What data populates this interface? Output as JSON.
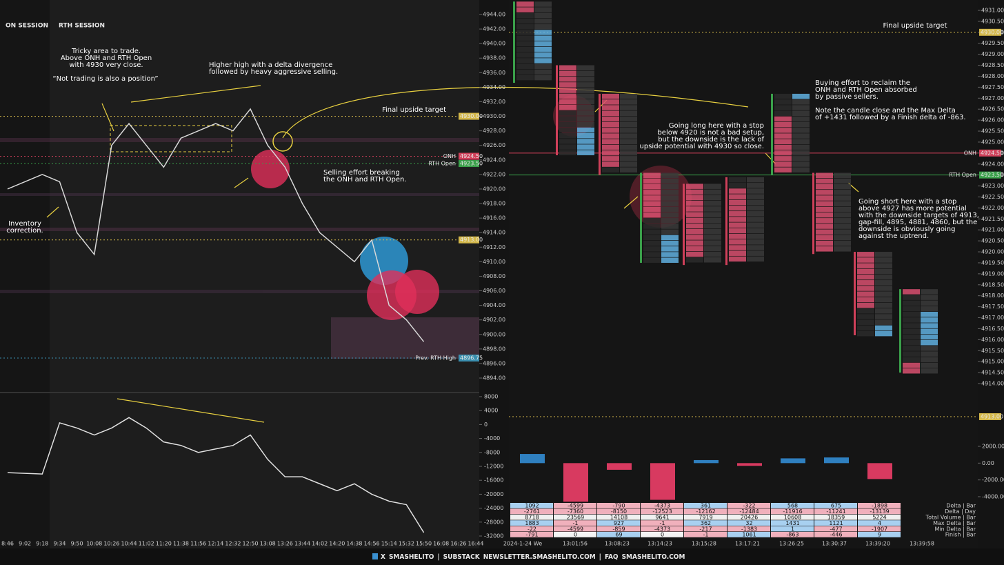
{
  "sessions": [
    "ON SESSION",
    "RTH SESSION"
  ],
  "left_chart": {
    "yticks": [
      {
        "value": 4944,
        "label": "4944.00"
      },
      {
        "value": 4942,
        "label": "4942.00"
      },
      {
        "value": 4940,
        "label": "4940.00"
      },
      {
        "value": 4938,
        "label": "4938.00"
      },
      {
        "value": 4936,
        "label": "4936.00"
      },
      {
        "value": 4934,
        "label": "4934.00"
      },
      {
        "value": 4932,
        "label": "4932.00"
      },
      {
        "value": 4930,
        "label": "4930.00"
      },
      {
        "value": 4928,
        "label": "4928.00"
      },
      {
        "value": 4926,
        "label": "4926.00"
      },
      {
        "value": 4924,
        "label": "4924.00"
      },
      {
        "value": 4922,
        "label": "4922.00"
      },
      {
        "value": 4920,
        "label": "4920.00"
      },
      {
        "value": 4918,
        "label": "4918.00"
      },
      {
        "value": 4916,
        "label": "4916.00"
      },
      {
        "value": 4914,
        "label": "4914.00"
      },
      {
        "value": 4912,
        "label": "4912.00"
      },
      {
        "value": 4910,
        "label": "4910.00"
      },
      {
        "value": 4908,
        "label": "4908.00"
      },
      {
        "value": 4906,
        "label": "4906.00"
      },
      {
        "value": 4904,
        "label": "4904.00"
      },
      {
        "value": 4902,
        "label": "4902.00"
      },
      {
        "value": 4900,
        "label": "4900.00"
      },
      {
        "value": 4898,
        "label": "4898.00"
      },
      {
        "value": 4896,
        "label": "4896.00"
      },
      {
        "value": 4894,
        "label": "4894.00"
      }
    ],
    "levels": [
      {
        "name": "",
        "value": 4930,
        "label": "4930.00",
        "color": "#d4b84a"
      },
      {
        "name": "ONH",
        "value": 4924.5,
        "label": "4924.50",
        "color": "#d0405a"
      },
      {
        "name": "RTH Open",
        "value": 4923.5,
        "label": "4923.50",
        "color": "#3aa04a"
      },
      {
        "name": "",
        "value": 4913,
        "label": "4913.00",
        "color": "#d4b84a"
      },
      {
        "name": "Prev. RTH High",
        "value": 4896.75,
        "label": "4896.75",
        "color": "#3a8fb0"
      }
    ],
    "times": [
      "8:46",
      "9:02",
      "9:18",
      "9:34",
      "9:50",
      "10:08",
      "10:26",
      "10:44",
      "11:02",
      "11:20",
      "11:38",
      "11:56",
      "12:14",
      "12:32",
      "12:50",
      "13:08",
      "13:26",
      "13:44",
      "14:02",
      "14:20",
      "14:38",
      "14:56",
      "15:14",
      "15:32",
      "15:50",
      "16:08",
      "16:26",
      "16:44"
    ],
    "price": [
      4920,
      4921,
      4922,
      4921,
      4914,
      4911,
      4926,
      4929,
      4926,
      4923,
      4927,
      4928,
      4929,
      4928,
      4931,
      4926,
      4923,
      4918,
      4914,
      4912,
      4910,
      4913,
      4904,
      4902,
      4899,
      null,
      null,
      null
    ],
    "delta_yticks": [
      8000,
      4000,
      0,
      -4000,
      -8000,
      -12000,
      -16000,
      -20000,
      -24000,
      -28000,
      -32000
    ],
    "delta": [
      -13800,
      -14000,
      -14200,
      500,
      -1000,
      -3000,
      -1000,
      2000,
      -1000,
      -5000,
      -6000,
      -8000,
      -7000,
      -6000,
      -3000,
      -10000,
      -15000,
      -15000,
      -17000,
      -19000,
      -17000,
      -20000,
      -22000,
      -23000,
      -31000,
      null,
      null,
      null
    ]
  },
  "left_annotations": [
    {
      "lines": [
        "Tricky area to trade.",
        "Above ONH and RTH Open",
        "with 4930 very close."
      ]
    },
    {
      "lines": [
        "“Not trading is also a position”"
      ]
    },
    {
      "lines": [
        "Higher high with a delta divergence",
        "followed by heavy aggressive selling."
      ]
    },
    {
      "lines": [
        "Final upside target"
      ]
    },
    {
      "lines": [
        "Selling effort breaking",
        "the ONH and RTH Open."
      ]
    },
    {
      "lines": [
        "Inventory",
        "correction."
      ]
    }
  ],
  "right_chart": {
    "yticks": [
      {
        "value": 4931,
        "label": "4931.00"
      },
      {
        "value": 4930.5,
        "label": "4930.50"
      },
      {
        "value": 4930,
        "label": "4930.00"
      },
      {
        "value": 4929.5,
        "label": "4929.50"
      },
      {
        "value": 4929,
        "label": "4929.00"
      },
      {
        "value": 4928.5,
        "label": "4928.50"
      },
      {
        "value": 4928,
        "label": "4928.00"
      },
      {
        "value": 4927.5,
        "label": "4927.50"
      },
      {
        "value": 4927,
        "label": "4927.00"
      },
      {
        "value": 4926.5,
        "label": "4926.50"
      },
      {
        "value": 4926,
        "label": "4926.00"
      },
      {
        "value": 4925.5,
        "label": "4925.50"
      },
      {
        "value": 4925,
        "label": "4925.00"
      },
      {
        "value": 4924.5,
        "label": "4924.50"
      },
      {
        "value": 4924,
        "label": "4924.00"
      },
      {
        "value": 4923.5,
        "label": "4923.50"
      },
      {
        "value": 4923,
        "label": "4923.00"
      },
      {
        "value": 4922.5,
        "label": "4922.50"
      },
      {
        "value": 4922,
        "label": "4922.00"
      },
      {
        "value": 4921.5,
        "label": "4921.50"
      },
      {
        "value": 4921,
        "label": "4921.00"
      },
      {
        "value": 4920.5,
        "label": "4920.50"
      },
      {
        "value": 4920,
        "label": "4920.00"
      },
      {
        "value": 4919.5,
        "label": "4919.50"
      },
      {
        "value": 4919,
        "label": "4919.00"
      },
      {
        "value": 4918.5,
        "label": "4918.50"
      },
      {
        "value": 4918,
        "label": "4918.00"
      },
      {
        "value": 4917.5,
        "label": "4917.50"
      },
      {
        "value": 4917,
        "label": "4917.00"
      },
      {
        "value": 4916.5,
        "label": "4916.50"
      },
      {
        "value": 4916,
        "label": "4916.00"
      },
      {
        "value": 4915.5,
        "label": "4915.50"
      },
      {
        "value": 4915,
        "label": "4915.00"
      },
      {
        "value": 4914.5,
        "label": "4914.50"
      },
      {
        "value": 4914,
        "label": "4914.00"
      }
    ],
    "levels": [
      {
        "name": "",
        "value": 4930,
        "label": "4930.00",
        "color": "#d4b84a"
      },
      {
        "name": "ONH",
        "value": 4924.5,
        "label": "4924.50",
        "color": "#d0405a"
      },
      {
        "name": "RTH Open",
        "value": 4923.5,
        "label": "4923.50",
        "color": "#3aa04a"
      }
    ],
    "ranges": [
      [
        4931.4,
        4927.7
      ],
      [
        4928.5,
        4924.4
      ],
      [
        4927.2,
        4923.5
      ],
      [
        4923.6,
        4919.5
      ],
      [
        4923.1,
        4919.4
      ],
      [
        4923.4,
        4919.4
      ],
      [
        4927.2,
        4923.5
      ],
      [
        4923.6,
        4919.9
      ],
      [
        4920,
        4916.2
      ],
      [
        4918.3,
        4914.5
      ]
    ],
    "times": [
      "2024-1-24 We",
      "13:01:56",
      "13:08:23",
      "13:14:23",
      "13:15:28",
      "13:17:21",
      "13:26:25",
      "13:30:37",
      "13:39:20",
      "13:39:58"
    ],
    "delta_yticks": [
      {
        "value": 2000,
        "label": "2000.00"
      },
      {
        "value": 0,
        "label": "0.00"
      },
      {
        "value": -2000,
        "label": "-2000.00"
      },
      {
        "value": -4000,
        "label": "-4000.00"
      }
    ],
    "far_level": {
      "value": 4913,
      "label": "4913.00"
    }
  },
  "right_annotations": [
    {
      "lines": [
        "Final upside target"
      ]
    },
    {
      "lines": [
        "Buying effort to reclaim the",
        "ONH and RTH Open absorbed",
        "by passive sellers."
      ]
    },
    {
      "lines": [
        "Note the candle close and the Max Delta",
        "of +1431 followed by a Finish delta of -863."
      ]
    },
    {
      "lines": [
        "Going long here with a stop",
        "below 4920 is not a bad setup,",
        "but the downside is the lack of",
        "upside potential with 4930 so close."
      ]
    },
    {
      "lines": [
        "Going short here with a stop",
        "above 4927 has more potential",
        "with the downside targets of 4913,",
        "gap-fill, 4895, 4881, 4860, but the",
        "downside is obviously going",
        "against the uptrend."
      ]
    }
  ],
  "table": {
    "rows": [
      {
        "label": "Delta | Bar",
        "values": [
          1092,
          -4599,
          -790,
          -4373,
          361,
          -322,
          568,
          675,
          -1898
        ]
      },
      {
        "label": "Delta | Day",
        "values": [
          -2761,
          -7360,
          -8150,
          -12523,
          -12162,
          -12484,
          -11916,
          -11241,
          -13139
        ]
      },
      {
        "label": "Total Volume | Bar",
        "values": [
          8718,
          23569,
          14108,
          9641,
          7919,
          20426,
          10608,
          18359,
          5224
        ]
      },
      {
        "label": "Max Delta | Bar",
        "values": [
          1883,
          -1,
          927,
          -1,
          362,
          32,
          1431,
          1121,
          4
        ]
      },
      {
        "label": "Min Delta | Bar",
        "values": [
          -22,
          -4599,
          -859,
          -4373,
          -217,
          -1383,
          1,
          -477,
          -1907
        ]
      },
      {
        "label": "Finish | Bar",
        "values": [
          -791,
          0,
          69,
          0,
          -1,
          1061,
          -863,
          -446,
          9
        ]
      }
    ]
  },
  "footer": [
    {
      "text": "X",
      "color": "#ffffff"
    },
    {
      "text": "SMASHELITO",
      "color": "#f07030"
    },
    {
      "text": "|",
      "color": "#ffffff"
    },
    {
      "text": "SUBSTACK",
      "color": "#ffffff"
    },
    {
      "text": "NEWSLETTER.SMASHELITO.COM",
      "color": "#f07030"
    },
    {
      "text": "|",
      "color": "#ffffff"
    },
    {
      "text": "FAQ",
      "color": "#ffffff"
    },
    {
      "text": "SMASHELITO.COM",
      "color": "#f07030"
    }
  ]
}
